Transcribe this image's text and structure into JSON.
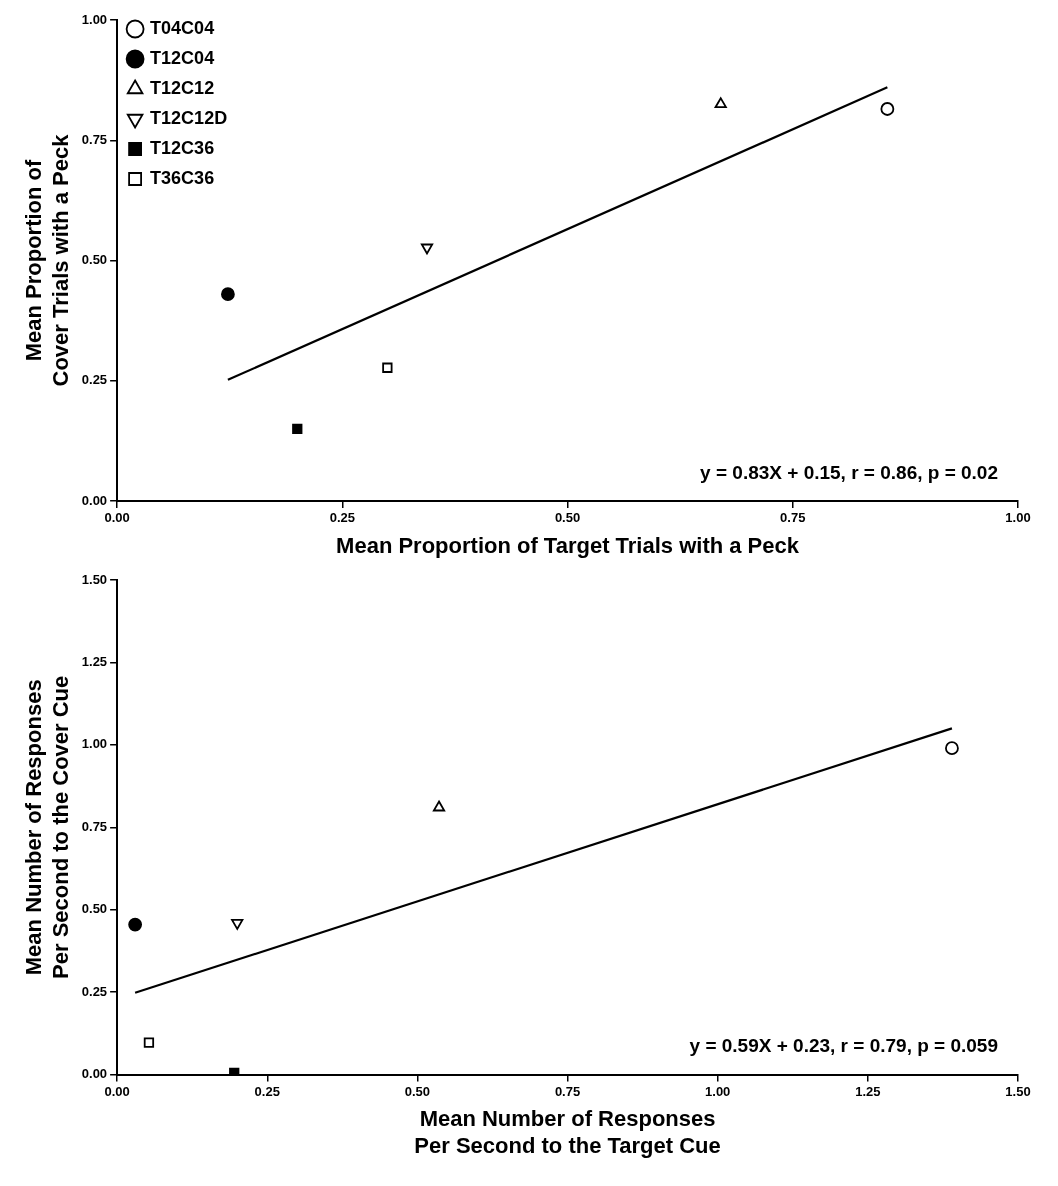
{
  "chart_data": [
    {
      "type": "scatter",
      "xlabel": "Mean Proportion of Target Trials with a Peck",
      "ylabel": "Mean Proportion of\nCover Trials with a Peck",
      "xlim": [
        0,
        1
      ],
      "ylim": [
        0,
        1
      ],
      "xticks": [
        {
          "value": 0,
          "label": "0.00"
        },
        {
          "value": 0.25,
          "label": "0.25"
        },
        {
          "value": 0.5,
          "label": "0.50"
        },
        {
          "value": 0.75,
          "label": "0.75"
        },
        {
          "value": 1,
          "label": "1.00"
        }
      ],
      "yticks": [
        {
          "value": 0,
          "label": "0.00"
        },
        {
          "value": 0.25,
          "label": "0.25"
        },
        {
          "value": 0.5,
          "label": "0.50"
        },
        {
          "value": 0.75,
          "label": "0.75"
        },
        {
          "value": 1,
          "label": "1.00"
        }
      ],
      "legend": "top left",
      "annotations": [
        "y = 0.83X + 0.15, r = 0.86, p = 0.02"
      ],
      "series": [
        {
          "name": "T04C04",
          "color": "#ffffff",
          "marker": "circle",
          "x": [
            0.855
          ],
          "values": [
            0.815
          ]
        },
        {
          "name": "T12C04",
          "color": "#000000",
          "marker": "circle",
          "x": [
            0.123
          ],
          "values": [
            0.43
          ]
        },
        {
          "name": "T12C12",
          "color": "#ffffff",
          "marker": "triangle",
          "x": [
            0.67
          ],
          "values": [
            0.825
          ]
        },
        {
          "name": "T12C12D",
          "color": "#ffffff",
          "marker": "triangle-down",
          "x": [
            0.344
          ],
          "values": [
            0.527
          ]
        },
        {
          "name": "T12C36",
          "color": "#000000",
          "marker": "square",
          "x": [
            0.2
          ],
          "values": [
            0.15
          ]
        },
        {
          "name": "T36C36",
          "color": "#ffffff",
          "marker": "square",
          "x": [
            0.3
          ],
          "values": [
            0.277
          ]
        },
        {
          "type": "line",
          "color": "#000000",
          "marker": "none",
          "x": [
            0.123,
            0.855
          ],
          "values": [
            0.252,
            0.86
          ]
        }
      ]
    },
    {
      "type": "scatter",
      "xlabel": "Mean Number of Responses\nPer Second to the Target Cue",
      "ylabel": "Mean Number of Responses\nPer Second to the Cover Cue",
      "xlim": [
        0,
        1.5
      ],
      "ylim": [
        0,
        1.5
      ],
      "xticks": [
        {
          "value": 0,
          "label": "0.00"
        },
        {
          "value": 0.25,
          "label": "0.25"
        },
        {
          "value": 0.5,
          "label": "0.50"
        },
        {
          "value": 0.75,
          "label": "0.75"
        },
        {
          "value": 1,
          "label": "1.00"
        },
        {
          "value": 1.25,
          "label": "1.25"
        },
        {
          "value": 1.5,
          "label": "1.50"
        }
      ],
      "yticks": [
        {
          "value": 0,
          "label": "0.00"
        },
        {
          "value": 0.25,
          "label": "0.25"
        },
        {
          "value": 0.5,
          "label": "0.50"
        },
        {
          "value": 0.75,
          "label": "0.75"
        },
        {
          "value": 1,
          "label": "1.00"
        },
        {
          "value": 1.25,
          "label": "1.25"
        },
        {
          "value": 1.5,
          "label": "1.50"
        }
      ],
      "annotations": [
        "y = 0.59X + 0.23, r = 0.79, p = 0.059"
      ],
      "series": [
        {
          "color": "#ffffff",
          "marker": "circle",
          "x": [
            1.39
          ],
          "values": [
            0.99
          ]
        },
        {
          "color": "#000000",
          "marker": "circle",
          "x": [
            0.03
          ],
          "values": [
            0.455
          ]
        },
        {
          "color": "#ffffff",
          "marker": "triangle",
          "x": [
            0.536
          ],
          "values": [
            0.81
          ]
        },
        {
          "color": "#ffffff",
          "marker": "triangle-down",
          "x": [
            0.2
          ],
          "values": [
            0.46
          ]
        },
        {
          "color": "#000000",
          "marker": "square",
          "x": [
            0.195
          ],
          "values": [
            0.005
          ]
        },
        {
          "color": "#ffffff",
          "marker": "square",
          "x": [
            0.053
          ],
          "values": [
            0.097
          ]
        },
        {
          "type": "line",
          "color": "#000000",
          "marker": "none",
          "x": [
            0.03,
            1.39
          ],
          "values": [
            0.248,
            1.05
          ]
        }
      ]
    }
  ]
}
